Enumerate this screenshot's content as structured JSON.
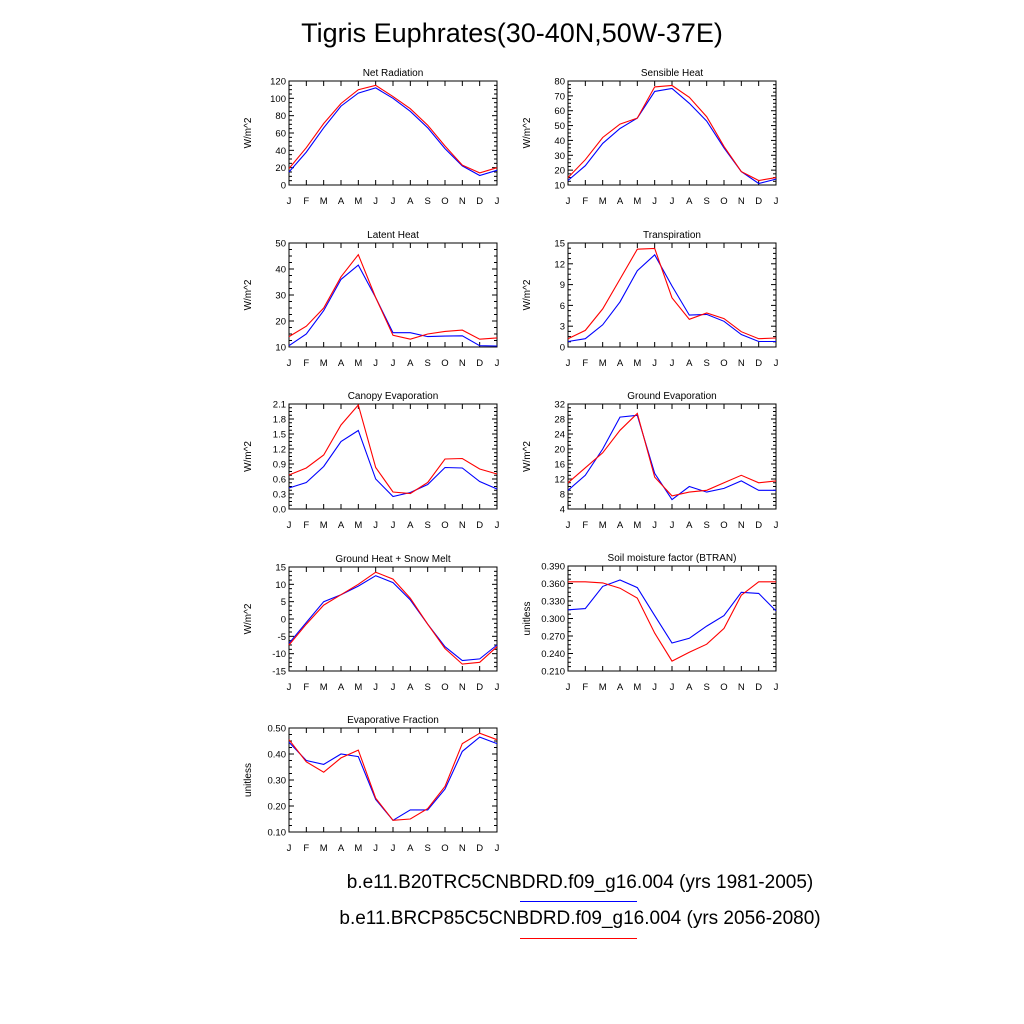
{
  "title": "Tigris Euphrates(30-40N,50W-37E)",
  "legend": [
    {
      "name": "b.e11.B20TRC5CNBDRD.f09_g16.004 (yrs 1981-2005)",
      "color": "#0000ff"
    },
    {
      "name": "b.e11.BRCP85C5CNBDRD.f09_g16.004 (yrs 2056-2080)",
      "color": "#ff0000"
    }
  ],
  "chart_data": [
    {
      "type": "line",
      "title": "Net Radiation",
      "ylabel": "W/m^2",
      "x": [
        "J",
        "F",
        "M",
        "A",
        "M",
        "J",
        "J",
        "A",
        "S",
        "O",
        "N",
        "D",
        "J"
      ],
      "ylim": [
        0,
        120
      ],
      "yticks": [
        "0",
        "20",
        "40",
        "60",
        "80",
        "100",
        "120"
      ],
      "series": [
        {
          "color": "#0000ff",
          "values": [
            15,
            38,
            66,
            91,
            106,
            112,
            100,
            85,
            66,
            42,
            22,
            11,
            17
          ]
        },
        {
          "color": "#ff0000",
          "values": [
            19,
            43,
            71,
            94,
            110,
            115,
            102,
            88,
            69,
            45,
            23,
            14,
            20
          ]
        }
      ]
    },
    {
      "type": "line",
      "title": "Sensible Heat",
      "ylabel": "W/m^2",
      "x": [
        "J",
        "F",
        "M",
        "A",
        "M",
        "J",
        "J",
        "A",
        "S",
        "O",
        "N",
        "D",
        "J"
      ],
      "ylim": [
        10,
        80
      ],
      "yticks": [
        "10",
        "20",
        "30",
        "40",
        "50",
        "60",
        "70",
        "80"
      ],
      "series": [
        {
          "color": "#0000ff",
          "values": [
            13,
            23,
            38,
            48,
            55,
            73,
            75,
            65,
            53,
            35,
            19,
            11,
            14
          ]
        },
        {
          "color": "#ff0000",
          "values": [
            15,
            27,
            42,
            51,
            55,
            76,
            77,
            69,
            56,
            36,
            19,
            13,
            15
          ]
        }
      ]
    },
    {
      "type": "line",
      "title": "Latent Heat",
      "ylabel": "W/m^2",
      "x": [
        "J",
        "F",
        "M",
        "A",
        "M",
        "J",
        "J",
        "A",
        "S",
        "O",
        "N",
        "D",
        "J"
      ],
      "ylim": [
        10,
        50
      ],
      "yticks": [
        "10",
        "20",
        "30",
        "40",
        "50"
      ],
      "series": [
        {
          "color": "#0000ff",
          "values": [
            10.5,
            15,
            24,
            36,
            41.5,
            29,
            15.5,
            15.5,
            14,
            14.2,
            14.3,
            10.5,
            10.4
          ]
        },
        {
          "color": "#ff0000",
          "values": [
            14,
            18,
            25,
            37,
            45.5,
            29,
            14.5,
            13,
            15,
            16,
            16.5,
            13,
            13.5
          ]
        }
      ]
    },
    {
      "type": "line",
      "title": "Transpiration",
      "ylabel": "W/m^2",
      "x": [
        "J",
        "F",
        "M",
        "A",
        "M",
        "J",
        "J",
        "A",
        "S",
        "O",
        "N",
        "D",
        "J"
      ],
      "ylim": [
        0,
        15
      ],
      "yticks": [
        "0",
        "3",
        "6",
        "9",
        "12",
        "15"
      ],
      "series": [
        {
          "color": "#0000ff",
          "values": [
            0.8,
            1.2,
            3.2,
            6.5,
            11,
            13.3,
            8.8,
            4.6,
            4.7,
            3.7,
            1.8,
            0.8,
            0.8
          ]
        },
        {
          "color": "#ff0000",
          "values": [
            1.2,
            2.4,
            5.5,
            9.8,
            14.1,
            14.2,
            7.1,
            4,
            4.9,
            4.1,
            2.2,
            1.2,
            1.3
          ]
        }
      ]
    },
    {
      "type": "line",
      "title": "Canopy Evaporation",
      "ylabel": "W/m^2",
      "x": [
        "J",
        "F",
        "M",
        "A",
        "M",
        "J",
        "J",
        "A",
        "S",
        "O",
        "N",
        "D",
        "J"
      ],
      "ylim": [
        0,
        2.1
      ],
      "yticks": [
        "0.0",
        "0.3",
        "0.6",
        "0.9",
        "1.2",
        "1.5",
        "1.8",
        "2.1"
      ],
      "series": [
        {
          "color": "#0000ff",
          "values": [
            0.42,
            0.53,
            0.85,
            1.35,
            1.57,
            0.6,
            0.25,
            0.33,
            0.49,
            0.83,
            0.82,
            0.55,
            0.4
          ]
        },
        {
          "color": "#ff0000",
          "values": [
            0.68,
            0.82,
            1.08,
            1.68,
            2.08,
            0.83,
            0.34,
            0.31,
            0.53,
            1.0,
            1.01,
            0.8,
            0.7
          ]
        }
      ]
    },
    {
      "type": "line",
      "title": "Ground Evaporation",
      "ylabel": "W/m^2",
      "x": [
        "J",
        "F",
        "M",
        "A",
        "M",
        "J",
        "J",
        "A",
        "S",
        "O",
        "N",
        "D",
        "J"
      ],
      "ylim": [
        4,
        32
      ],
      "yticks": [
        "4",
        "8",
        "12",
        "16",
        "20",
        "24",
        "28",
        "32"
      ],
      "series": [
        {
          "color": "#0000ff",
          "values": [
            9,
            13,
            20,
            28.5,
            29,
            13.5,
            6.5,
            10,
            8.5,
            9.5,
            11.5,
            9,
            9
          ]
        },
        {
          "color": "#ff0000",
          "values": [
            11,
            15,
            19,
            25,
            29.5,
            12.5,
            7.5,
            8.5,
            9,
            11,
            13,
            11,
            11.5
          ]
        }
      ]
    },
    {
      "type": "line",
      "title": "Ground Heat + Snow Melt",
      "ylabel": "W/m^2",
      "x": [
        "J",
        "F",
        "M",
        "A",
        "M",
        "J",
        "J",
        "A",
        "S",
        "O",
        "N",
        "D",
        "J"
      ],
      "ylim": [
        -15,
        15
      ],
      "yticks": [
        "-15",
        "-10",
        "-5",
        "0",
        "5",
        "10",
        "15"
      ],
      "series": [
        {
          "color": "#0000ff",
          "values": [
            -7,
            -1,
            5,
            7,
            9.5,
            12.5,
            10.5,
            5.5,
            -1.5,
            -8,
            -12,
            -11.5,
            -7.5
          ]
        },
        {
          "color": "#ff0000",
          "values": [
            -7.5,
            -1.5,
            4,
            7,
            10,
            13.5,
            11.5,
            6,
            -1.5,
            -8.5,
            -13,
            -12.5,
            -8
          ]
        }
      ]
    },
    {
      "type": "line",
      "title": "Soil moisture factor (BTRAN)",
      "ylabel": "unitless",
      "x": [
        "J",
        "F",
        "M",
        "A",
        "M",
        "J",
        "J",
        "A",
        "S",
        "O",
        "N",
        "D",
        "J"
      ],
      "ylim": [
        0.21,
        0.39
      ],
      "yticks": [
        "0.210",
        "0.240",
        "0.270",
        "0.300",
        "0.330",
        "0.360",
        "0.390"
      ],
      "series": [
        {
          "color": "#0000ff",
          "values": [
            0.315,
            0.317,
            0.355,
            0.366,
            0.353,
            0.305,
            0.258,
            0.266,
            0.287,
            0.305,
            0.345,
            0.343,
            0.313
          ]
        },
        {
          "color": "#ff0000",
          "values": [
            0.363,
            0.363,
            0.361,
            0.352,
            0.335,
            0.275,
            0.227,
            0.242,
            0.256,
            0.283,
            0.34,
            0.363,
            0.363
          ]
        }
      ]
    },
    {
      "type": "line",
      "title": "Evaporative Fraction",
      "ylabel": "unitless",
      "x": [
        "J",
        "F",
        "M",
        "A",
        "M",
        "J",
        "J",
        "A",
        "S",
        "O",
        "N",
        "D",
        "J"
      ],
      "ylim": [
        0.1,
        0.5
      ],
      "yticks": [
        "0.10",
        "0.20",
        "0.30",
        "0.40",
        "0.50"
      ],
      "series": [
        {
          "color": "#0000ff",
          "values": [
            0.445,
            0.375,
            0.36,
            0.4,
            0.39,
            0.225,
            0.145,
            0.185,
            0.185,
            0.265,
            0.41,
            0.465,
            0.44
          ]
        },
        {
          "color": "#ff0000",
          "values": [
            0.455,
            0.37,
            0.33,
            0.385,
            0.415,
            0.23,
            0.145,
            0.15,
            0.19,
            0.275,
            0.44,
            0.48,
            0.455
          ]
        }
      ]
    }
  ]
}
